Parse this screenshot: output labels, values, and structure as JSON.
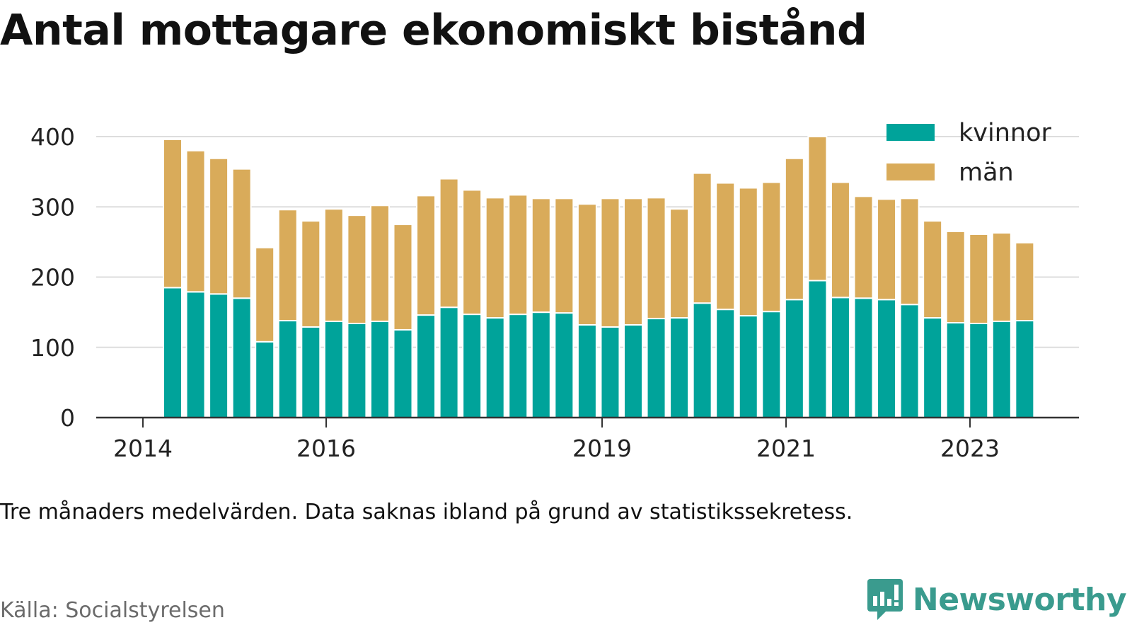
{
  "title": "Antal mottagare ekonomiskt bistånd",
  "note": "Tre månaders medelvärden. Data saknas ibland på grund av statistikssekretess.",
  "source": "Källa: Socialstyrelsen",
  "brand": {
    "name": "Newsworthy",
    "icon": "bar-chart-speech-bubble-icon",
    "color": "#3a9b8e"
  },
  "chart_data": {
    "type": "bar",
    "stacked": true,
    "x_ticks": [
      "2014",
      "2016",
      "2019",
      "2021",
      "2023"
    ],
    "y_ticks": [
      "0",
      "100",
      "200",
      "300",
      "400"
    ],
    "ylim": [
      0,
      400
    ],
    "grid": true,
    "legend_position": "top-right",
    "series": [
      {
        "name": "kvinnor",
        "color": "#00a39a",
        "values": [
          185,
          179,
          176,
          170,
          108,
          138,
          129,
          137,
          134,
          137,
          125,
          146,
          157,
          147,
          142,
          147,
          150,
          149,
          132,
          129,
          132,
          141,
          142,
          163,
          154,
          145,
          151,
          168,
          195,
          171,
          170,
          168,
          161,
          142,
          135,
          134,
          137,
          138
        ]
      },
      {
        "name": "män",
        "color": "#d9ab5a",
        "values": [
          211,
          201,
          193,
          184,
          134,
          158,
          151,
          160,
          154,
          165,
          150,
          170,
          183,
          177,
          171,
          170,
          162,
          163,
          172,
          183,
          180,
          172,
          155,
          185,
          180,
          182,
          184,
          201,
          205,
          164,
          145,
          143,
          151,
          138,
          130,
          127,
          126,
          111
        ]
      }
    ]
  }
}
